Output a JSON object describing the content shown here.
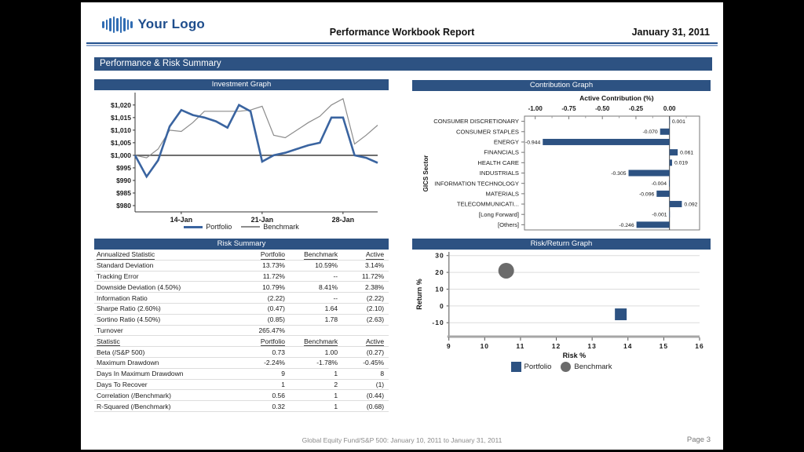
{
  "page": {
    "header": {
      "logo_text": "Your Logo",
      "title": "Performance Workbook Report",
      "date": "January 31, 2011"
    },
    "section_title": "Performance & Risk Summary",
    "footer": {
      "left": "Global Equity Fund/S&P 500: January 10, 2011 to January 31, 2011",
      "page": "Page 3"
    }
  },
  "colors": {
    "navy": "#2d5282",
    "portfolio_blue": "#3a64a0",
    "benchmark_gray": "#8c8c8c",
    "scatter_gray": "#6b6b6b"
  },
  "chart_data": [
    {
      "type": "line",
      "panel_title": "Investment Graph",
      "baseline": 1000,
      "ylim": [
        977.5,
        1024
      ],
      "y_ticks": [
        {
          "value": 980,
          "label": "$980"
        },
        {
          "value": 985,
          "label": "$985"
        },
        {
          "value": 990,
          "label": "$990"
        },
        {
          "value": 995,
          "label": "$995"
        },
        {
          "value": 1000,
          "label": "$1,000"
        },
        {
          "value": 1005,
          "label": "$1,005"
        },
        {
          "value": 1010,
          "label": "$1,010"
        },
        {
          "value": 1015,
          "label": "$1,015"
        },
        {
          "value": 1020,
          "label": "$1,020"
        }
      ],
      "x_ticks": [
        {
          "index": 4,
          "label": "14-Jan"
        },
        {
          "index": 11,
          "label": "21-Jan"
        },
        {
          "index": 18,
          "label": "28-Jan"
        }
      ],
      "series": [
        {
          "name": "Benchmark",
          "color": "#8c8c8c",
          "width": 1.2,
          "values": [
            1000,
            999,
            1002.5,
            1010,
            1009.5,
            1013,
            1017.5,
            1017.5,
            1017.5,
            1017.5,
            1018,
            1019.5,
            1008,
            1007,
            1010,
            1013,
            1015.5,
            1020,
            1022.5,
            1004.5,
            1008,
            1012
          ]
        },
        {
          "name": "Portfolio",
          "color": "#3a64a0",
          "width": 2.6,
          "values": [
            1000,
            991.5,
            998,
            1011.5,
            1018,
            1016,
            1015,
            1013.5,
            1011,
            1020,
            1017.5,
            997.5,
            1000,
            1001,
            1002.5,
            1004,
            1005,
            1015,
            1015,
            1000,
            999,
            997
          ]
        }
      ],
      "legend": [
        "Portfolio",
        "Benchmark"
      ]
    },
    {
      "type": "bar",
      "panel_title": "Contribution Graph",
      "axis_title": "Active Contribution (%)",
      "ylabel": "GICS Sector",
      "bar_color": "#2d5282",
      "x_ticks": [
        "-1.00",
        "-0.75",
        "-0.50",
        "-0.25",
        "0.00"
      ],
      "xlim": [
        -1.08,
        0.224
      ],
      "categories": [
        "CONSUMER DISCRETIONARY",
        "CONSUMER STAPLES",
        "ENERGY",
        "FINANCIALS",
        "HEALTH CARE",
        "INDUSTRIALS",
        "INFORMATION TECHNOLOGY",
        "MATERIALS",
        "TELECOMMUNICATI...",
        "[Long Forward]",
        "[Others]"
      ],
      "values": [
        0.001,
        -0.07,
        -0.944,
        0.061,
        0.019,
        -0.305,
        -0.004,
        -0.096,
        0.092,
        -0.001,
        -0.246
      ],
      "labels": [
        "0.001",
        "-0.070",
        "-0.944",
        "0.061",
        "0.019",
        "-0.305",
        "-0.004",
        "-0.096",
        "0.092",
        "-0.001",
        "-0.246"
      ]
    },
    {
      "type": "table",
      "panel_title": "Risk Summary",
      "sections": [
        {
          "header": [
            "Annualized Statistic",
            "Portfolio",
            "Benchmark",
            "Active"
          ],
          "rows": [
            [
              "Standard Deviation",
              "13.73%",
              "10.59%",
              "3.14%"
            ],
            [
              "Tracking Error",
              "11.72%",
              "--",
              "11.72%"
            ],
            [
              "Downside Deviation (4.50%)",
              "10.79%",
              "8.41%",
              "2.38%"
            ],
            [
              "Information Ratio",
              "(2.22)",
              "--",
              "(2.22)"
            ],
            [
              "Sharpe Ratio (2.60%)",
              "(0.47)",
              "1.64",
              "(2.10)"
            ],
            [
              "Sortino Ratio (4.50%)",
              "(0.85)",
              "1.78",
              "(2.63)"
            ],
            [
              "Turnover",
              "265.47%",
              "",
              ""
            ]
          ]
        },
        {
          "header": [
            "Statistic",
            "Portfolio",
            "Benchmark",
            "Active"
          ],
          "rows": [
            [
              "Beta (/S&P 500)",
              "0.73",
              "1.00",
              "(0.27)"
            ],
            [
              "Maximum Drawdown",
              "-2.24%",
              "-1.78%",
              "-0.45%"
            ],
            [
              "Days In Maximum Drawdown",
              "9",
              "1",
              "8"
            ],
            [
              "Days To Recover",
              "1",
              "2",
              "(1)"
            ],
            [
              "Correlation (/Benchmark)",
              "0.56",
              "1",
              "(0.44)"
            ],
            [
              "R-Squared (/Benchmark)",
              "0.32",
              "1",
              "(0.68)"
            ]
          ]
        }
      ]
    },
    {
      "type": "scatter",
      "panel_title": "Risk/Return Graph",
      "xlabel": "Risk %",
      "ylabel": "Return %",
      "xlim": [
        9,
        16
      ],
      "x_ticks": [
        9,
        10,
        11,
        12,
        13,
        14,
        15,
        16
      ],
      "y_ticks": [
        30,
        20,
        10,
        0,
        -10
      ],
      "points": [
        {
          "name": "Portfolio",
          "x": 13.8,
          "y": -5,
          "marker": "square",
          "color": "#2d5282"
        },
        {
          "name": "Benchmark",
          "x": 10.6,
          "y": 21,
          "marker": "circle",
          "color": "#6b6b6b"
        }
      ],
      "legend": [
        {
          "label": "Portfolio",
          "marker": "square",
          "color": "#2d5282"
        },
        {
          "label": "Benchmark",
          "marker": "circle",
          "color": "#6b6b6b"
        }
      ]
    }
  ]
}
